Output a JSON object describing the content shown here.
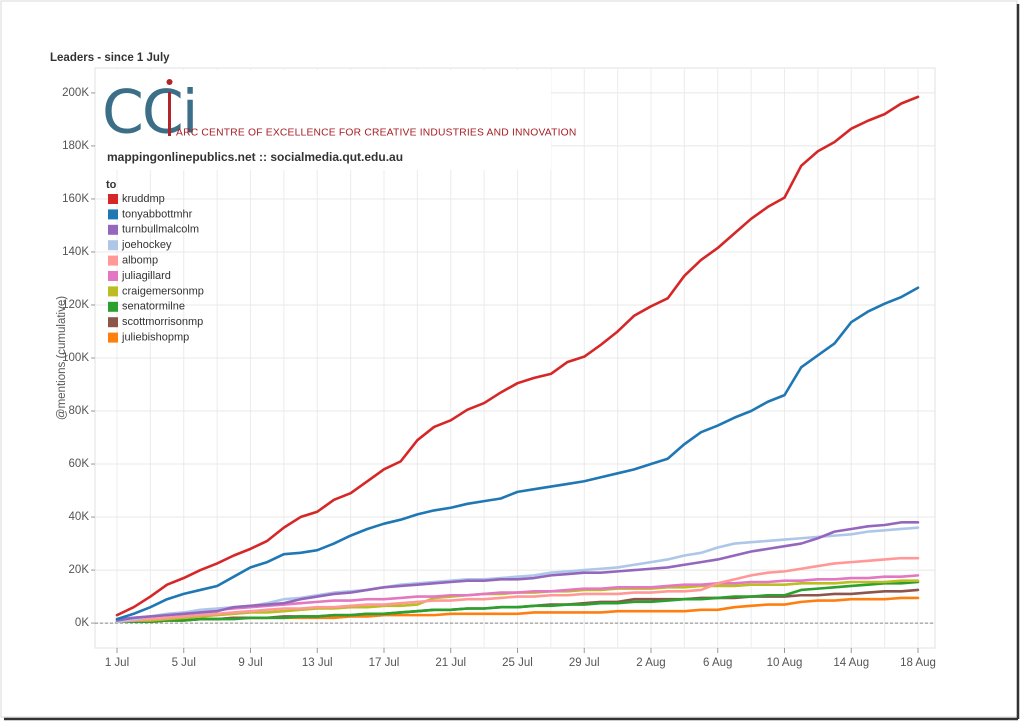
{
  "chart_data": {
    "type": "line",
    "title": "Leaders - since 1 July",
    "ylabel": "@mentions (cumulative)",
    "legend_title": "to",
    "legend": "top-left",
    "grid": true,
    "logo_text": "CCi",
    "logo_subtitle": "ARC CENTRE OF EXCELLENCE FOR CREATIVE INDUSTRIES AND INNOVATION",
    "credit": "mappingonlinepublics.net :: socialmedia.qut.edu.au",
    "categories": [
      "1 Jul",
      null,
      null,
      null,
      "5 Jul",
      null,
      null,
      null,
      "9 Jul",
      null,
      null,
      null,
      "13 Jul",
      null,
      null,
      null,
      "17 Jul",
      null,
      null,
      null,
      "21 Jul",
      null,
      null,
      null,
      "25 Jul",
      null,
      null,
      null,
      "29 Jul",
      null,
      null,
      null,
      "2 Aug",
      null,
      null,
      null,
      "6 Aug",
      null,
      null,
      null,
      "10 Aug",
      null,
      null,
      null,
      "14 Aug",
      null,
      null,
      null,
      "18 Aug"
    ],
    "ylim": [
      -9400,
      209400
    ],
    "yticks": [
      {
        "value": 0,
        "label": "0K"
      },
      {
        "value": 20000,
        "label": "20K"
      },
      {
        "value": 40000,
        "label": "40K"
      },
      {
        "value": 60000,
        "label": "60K"
      },
      {
        "value": 80000,
        "label": "80K"
      },
      {
        "value": 100000,
        "label": "100K"
      },
      {
        "value": 120000,
        "label": "120K"
      },
      {
        "value": 140000,
        "label": "140K"
      },
      {
        "value": 160000,
        "label": "160K"
      },
      {
        "value": 180000,
        "label": "180K"
      },
      {
        "value": 200000,
        "label": "200K"
      }
    ],
    "series": [
      {
        "name": "kruddmp",
        "color": "#d62728",
        "values": [
          3000,
          6000,
          10000,
          14500,
          17000,
          20000,
          22500,
          25500,
          28000,
          31000,
          36000,
          40000,
          42000,
          46500,
          49000,
          53500,
          58000,
          61000,
          69000,
          74000,
          76500,
          80500,
          83000,
          87000,
          90500,
          92500,
          94000,
          98500,
          100500,
          105000,
          110000,
          116000,
          119500,
          122500,
          131000,
          137000,
          141500,
          147000,
          152500,
          157000,
          160500,
          172500,
          178000,
          181500,
          186500,
          189500,
          192000,
          196000,
          198500
        ]
      },
      {
        "name": "tonyabbottmhr",
        "color": "#1f77b4",
        "values": [
          1500,
          3500,
          6000,
          9000,
          11000,
          12500,
          14000,
          17500,
          21000,
          23000,
          26000,
          26500,
          27500,
          30000,
          33000,
          35500,
          37500,
          39000,
          41000,
          42500,
          43500,
          45000,
          46000,
          47000,
          49500,
          50500,
          51500,
          52500,
          53500,
          55000,
          56500,
          58000,
          60000,
          62000,
          67500,
          72000,
          74500,
          77500,
          80000,
          83500,
          86000,
          96500,
          101000,
          105500,
          113500,
          117500,
          120500,
          123000,
          126500
        ]
      },
      {
        "name": "turnbullmalcolm",
        "color": "#9467bd",
        "values": [
          1000,
          2000,
          2500,
          3000,
          3500,
          4000,
          4500,
          6000,
          6500,
          7000,
          7500,
          9000,
          10000,
          11000,
          11500,
          12500,
          13500,
          14000,
          14500,
          15000,
          15500,
          16000,
          16000,
          16500,
          16500,
          17000,
          18000,
          18500,
          19000,
          19000,
          19500,
          20000,
          20500,
          21000,
          22000,
          23000,
          24000,
          25500,
          27000,
          28000,
          29000,
          30000,
          32000,
          34500,
          35500,
          36500,
          37000,
          38000,
          38000
        ]
      },
      {
        "name": "joehockey",
        "color": "#aec7e8",
        "values": [
          500,
          1500,
          2500,
          3500,
          4000,
          5000,
          5500,
          6000,
          6500,
          7500,
          9000,
          9500,
          10500,
          11500,
          12000,
          12500,
          13500,
          14500,
          15000,
          15500,
          16000,
          16500,
          16500,
          17000,
          17500,
          18000,
          19000,
          19500,
          20000,
          20500,
          21000,
          22000,
          23000,
          24000,
          25500,
          26500,
          28500,
          30000,
          30500,
          31000,
          31500,
          32000,
          32500,
          33000,
          33500,
          34500,
          35000,
          35500,
          36000
        ]
      },
      {
        "name": "albomp",
        "color": "#ff9896",
        "values": [
          500,
          1000,
          1500,
          2000,
          2500,
          3000,
          3500,
          4000,
          4500,
          5000,
          5500,
          5500,
          6000,
          6000,
          6500,
          7000,
          7000,
          7500,
          8000,
          8500,
          8500,
          9000,
          9000,
          9500,
          10000,
          10000,
          10500,
          10500,
          11000,
          11000,
          11000,
          11500,
          11500,
          12000,
          12000,
          12500,
          15000,
          16500,
          18000,
          19000,
          19500,
          20500,
          21500,
          22500,
          23000,
          23500,
          24000,
          24500,
          24500
        ]
      },
      {
        "name": "juliagillard",
        "color": "#e377c2",
        "values": [
          1500,
          2000,
          2500,
          3000,
          3500,
          4000,
          5000,
          5500,
          6000,
          6500,
          7000,
          7500,
          8000,
          8500,
          8500,
          9000,
          9000,
          9500,
          10000,
          10000,
          10500,
          10500,
          11000,
          11500,
          11500,
          12000,
          12000,
          12500,
          13000,
          13000,
          13500,
          13500,
          13500,
          14000,
          14500,
          14500,
          15000,
          15000,
          15500,
          15500,
          16000,
          16000,
          16500,
          16500,
          17000,
          17000,
          17500,
          17500,
          18000
        ]
      },
      {
        "name": "craigemersonmp",
        "color": "#bcbd22",
        "values": [
          500,
          1000,
          1000,
          1500,
          2000,
          2500,
          3000,
          3500,
          4000,
          4000,
          4500,
          5000,
          5500,
          5500,
          6000,
          6000,
          6500,
          6500,
          7000,
          9500,
          10000,
          10500,
          11000,
          11000,
          11500,
          11500,
          12000,
          12000,
          12500,
          12500,
          13000,
          13000,
          13000,
          13500,
          13500,
          14000,
          14000,
          14000,
          14500,
          14500,
          14500,
          15000,
          15000,
          15000,
          15500,
          15500,
          15500,
          16000,
          16000
        ]
      },
      {
        "name": "senatormilne",
        "color": "#2ca02c",
        "values": [
          500,
          500,
          500,
          1000,
          1000,
          1500,
          1500,
          1500,
          2000,
          2000,
          2000,
          2500,
          2500,
          3000,
          3000,
          3500,
          3500,
          4000,
          4500,
          5000,
          5000,
          5500,
          5500,
          6000,
          6000,
          6500,
          6500,
          7000,
          7000,
          7500,
          7500,
          8000,
          8000,
          8500,
          9000,
          9000,
          9500,
          10000,
          10000,
          10500,
          10500,
          12500,
          13000,
          13500,
          14000,
          14500,
          15000,
          15000,
          15500
        ]
      },
      {
        "name": "scottmorrisonmp",
        "color": "#8c564b",
        "values": [
          500,
          500,
          500,
          1000,
          1000,
          1500,
          1500,
          2000,
          2000,
          2000,
          2500,
          2500,
          2500,
          3000,
          3000,
          3500,
          3500,
          4000,
          4500,
          5000,
          5000,
          5500,
          5500,
          6000,
          6000,
          6500,
          7000,
          7000,
          7500,
          8000,
          8000,
          9000,
          9000,
          9000,
          9000,
          9500,
          9500,
          9500,
          10000,
          10000,
          10000,
          10500,
          10500,
          11000,
          11000,
          11500,
          12000,
          12000,
          12500
        ]
      },
      {
        "name": "juliebishopmp",
        "color": "#ff7f0e",
        "values": [
          500,
          500,
          500,
          1000,
          1000,
          1500,
          1500,
          2000,
          2000,
          2000,
          2000,
          2000,
          2000,
          2000,
          2500,
          2500,
          3000,
          3000,
          3000,
          3000,
          3500,
          3500,
          3500,
          3500,
          3500,
          4000,
          4000,
          4000,
          4000,
          4000,
          4500,
          4500,
          4500,
          4500,
          4500,
          5000,
          5000,
          6000,
          6500,
          7000,
          7000,
          8000,
          8500,
          8500,
          9000,
          9000,
          9000,
          9500,
          9500
        ]
      }
    ]
  }
}
